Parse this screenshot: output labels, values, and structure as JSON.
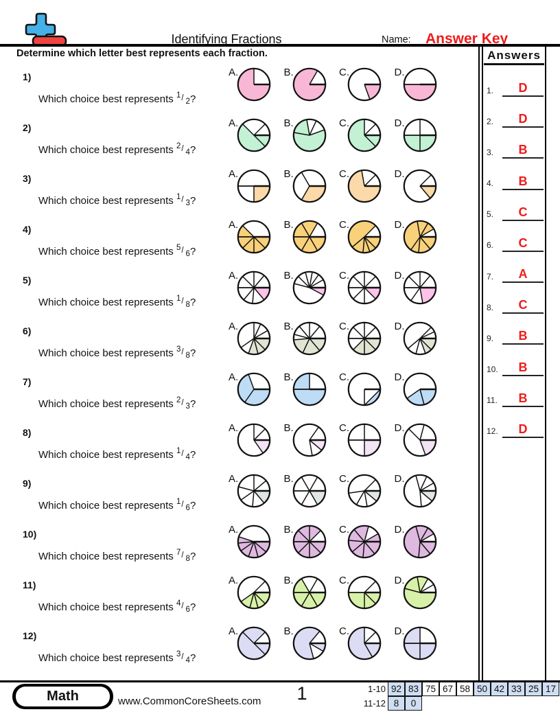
{
  "header": {
    "title": "Identifying Fractions",
    "name_label": "Name:",
    "answer_key": "Answer Key",
    "accent_red": "#ee1c1c"
  },
  "instruction": "Determine which letter best represents each fraction.",
  "answers_panel": {
    "title": "Answers",
    "items": [
      {
        "num": "1.",
        "letter": "D"
      },
      {
        "num": "2.",
        "letter": "D"
      },
      {
        "num": "3.",
        "letter": "B"
      },
      {
        "num": "4.",
        "letter": "B"
      },
      {
        "num": "5.",
        "letter": "C"
      },
      {
        "num": "6.",
        "letter": "C"
      },
      {
        "num": "7.",
        "letter": "A"
      },
      {
        "num": "8.",
        "letter": "C"
      },
      {
        "num": "9.",
        "letter": "B"
      },
      {
        "num": "10.",
        "letter": "B"
      },
      {
        "num": "11.",
        "letter": "B"
      },
      {
        "num": "12.",
        "letter": "D"
      }
    ]
  },
  "question_prefix": "Which choice best represents",
  "question_suffix": "?",
  "choice_labels": [
    "A.",
    "B.",
    "C.",
    "D."
  ],
  "chart_data": {
    "type": "pie-worksheet",
    "note": "each question shows 4 candidate pie charts; geometry below"
  },
  "questions": [
    {
      "num": "1)",
      "numerator": "1",
      "denominator": "2",
      "color": "#f9b7d6",
      "pies": [
        {
          "b": [
            0,
            90
          ],
          "f": [
            0,
            1
          ]
        },
        {
          "b": [
            30,
            90
          ],
          "f": [
            0,
            1
          ]
        },
        {
          "b": [
            90,
            160
          ],
          "f": [
            1,
            0
          ]
        },
        {
          "b": [
            90,
            270
          ],
          "f": [
            1,
            0
          ]
        }
      ]
    },
    {
      "num": "2)",
      "numerator": "2",
      "denominator": "4",
      "color": "#c3f1d3",
      "pies": [
        {
          "b": [
            45,
            90,
            135,
            315
          ],
          "f": [
            0,
            1,
            1,
            0
          ]
        },
        {
          "b": [
            25,
            70,
            280,
            350
          ],
          "f": [
            0,
            1,
            1,
            0
          ]
        },
        {
          "b": [
            0,
            45,
            90,
            135
          ],
          "f": [
            0,
            0,
            1,
            1
          ]
        },
        {
          "b": [
            0,
            90,
            180,
            270
          ],
          "f": [
            0,
            1,
            1,
            0
          ]
        }
      ]
    },
    {
      "num": "3)",
      "numerator": "1",
      "denominator": "3",
      "color": "#fbd9a8",
      "pies": [
        {
          "b": [
            90,
            180,
            270
          ],
          "f": [
            1,
            0,
            0
          ]
        },
        {
          "b": [
            90,
            210,
            330
          ],
          "f": [
            1,
            0,
            0
          ]
        },
        {
          "b": [
            45,
            90,
            350
          ],
          "f": [
            0,
            1,
            0
          ]
        },
        {
          "b": [
            45,
            90,
            140
          ],
          "f": [
            0,
            1,
            0
          ]
        }
      ]
    },
    {
      "num": "4)",
      "numerator": "5",
      "denominator": "6",
      "color": "#f9d17a",
      "pies": [
        {
          "b": [
            90,
            135,
            180,
            225,
            270,
            315
          ],
          "f": [
            1,
            1,
            1,
            1,
            1,
            0
          ]
        },
        {
          "b": [
            30,
            90,
            150,
            210,
            270,
            330
          ],
          "f": [
            0,
            1,
            1,
            1,
            1,
            1
          ]
        },
        {
          "b": [
            45,
            90,
            135,
            160,
            185,
            230
          ],
          "f": [
            0,
            1,
            1,
            1,
            1,
            1
          ]
        },
        {
          "b": [
            30,
            60,
            90,
            140,
            185,
            215,
            350
          ],
          "f": [
            1,
            0,
            1,
            1,
            1,
            1,
            1
          ]
        }
      ]
    },
    {
      "num": "5)",
      "numerator": "1",
      "denominator": "8",
      "color": "#fbc3e8",
      "pies": [
        {
          "b": [
            0,
            40,
            90,
            140,
            185,
            220,
            270,
            315
          ],
          "f": [
            0,
            0,
            1,
            0,
            0,
            0,
            0,
            0
          ]
        },
        {
          "b": [
            10,
            35,
            60,
            90,
            118,
            285,
            315,
            345
          ],
          "f": [
            0,
            0,
            0,
            1,
            0,
            0,
            0,
            0
          ]
        },
        {
          "b": [
            0,
            45,
            90,
            135,
            180,
            225,
            270,
            315
          ],
          "f": [
            0,
            0,
            1,
            0,
            0,
            0,
            0,
            0
          ]
        },
        {
          "b": [
            0,
            40,
            90,
            170,
            215,
            270,
            315
          ],
          "f": [
            0,
            0,
            1,
            0,
            0,
            0,
            0
          ]
        }
      ]
    },
    {
      "num": "6)",
      "numerator": "3",
      "denominator": "8",
      "color": "#e0e4d2",
      "pies": [
        {
          "b": [
            0,
            25,
            60,
            90,
            135,
            165,
            200,
            235
          ],
          "f": [
            0,
            0,
            0,
            1,
            1,
            1,
            0,
            0
          ]
        },
        {
          "b": [
            0,
            40,
            90,
            140,
            205,
            265,
            285,
            320
          ],
          "f": [
            0,
            0,
            1,
            1,
            1,
            0,
            0,
            0
          ]
        },
        {
          "b": [
            0,
            45,
            90,
            135,
            180,
            225,
            270,
            315
          ],
          "f": [
            0,
            0,
            1,
            1,
            1,
            0,
            0,
            0
          ]
        },
        {
          "b": [
            45,
            65,
            90,
            135,
            160,
            195,
            230
          ],
          "f": [
            0,
            0,
            1,
            1,
            0,
            0,
            0
          ]
        }
      ]
    },
    {
      "num": "7)",
      "numerator": "2",
      "denominator": "3",
      "color": "#bedcf6",
      "pies": [
        {
          "b": [
            90,
            215,
            340
          ],
          "f": [
            1,
            1,
            0
          ]
        },
        {
          "b": [
            0,
            90,
            270
          ],
          "f": [
            0,
            1,
            1
          ]
        },
        {
          "b": [
            90,
            180
          ],
          "f": [
            0,
            0
          ],
          "seg": [
            90,
            180
          ]
        },
        {
          "b": [
            90,
            165,
            235
          ],
          "f": [
            1,
            1,
            0
          ]
        }
      ]
    },
    {
      "num": "8)",
      "numerator": "1",
      "denominator": "4",
      "color": "#f3e3f4",
      "pies": [
        {
          "b": [
            0,
            45,
            90,
            145
          ],
          "f": [
            0,
            0,
            1,
            0
          ]
        },
        {
          "b": [
            35,
            90,
            130,
            170
          ],
          "f": [
            0,
            1,
            0,
            0
          ]
        },
        {
          "b": [
            0,
            90,
            180,
            270
          ],
          "f": [
            0,
            1,
            0,
            0
          ]
        },
        {
          "b": [
            15,
            90,
            160,
            315
          ],
          "f": [
            0,
            1,
            0,
            0
          ]
        }
      ]
    },
    {
      "num": "9)",
      "numerator": "1",
      "denominator": "6",
      "color": "#e0e6e3",
      "pies": [
        {
          "b": [
            0,
            50,
            90,
            140,
            185,
            235,
            285
          ],
          "f": [
            0,
            0,
            1,
            0,
            0,
            0,
            0
          ]
        },
        {
          "b": [
            30,
            90,
            150,
            210,
            270,
            330
          ],
          "f": [
            0,
            1,
            0,
            0,
            0,
            0
          ]
        },
        {
          "b": [
            45,
            90,
            130,
            170,
            210,
            262
          ],
          "f": [
            0,
            1,
            0,
            0,
            0,
            0
          ]
        },
        {
          "b": [
            25,
            60,
            90,
            130,
            175,
            345
          ],
          "f": [
            0,
            0,
            1,
            0,
            0,
            0
          ]
        }
      ]
    },
    {
      "num": "10)",
      "numerator": "7",
      "denominator": "8",
      "color": "#dfb9e0",
      "pies": [
        {
          "b": [
            90,
            130,
            165,
            200,
            235,
            265,
            288
          ],
          "f": [
            1,
            1,
            1,
            1,
            1,
            1,
            0
          ]
        },
        {
          "b": [
            0,
            45,
            90,
            135,
            180,
            225,
            270,
            315
          ],
          "f": [
            1,
            0,
            1,
            1,
            1,
            1,
            1,
            1
          ]
        },
        {
          "b": [
            15,
            60,
            90,
            140,
            185,
            230,
            275,
            320
          ],
          "f": [
            0,
            1,
            1,
            1,
            1,
            1,
            1,
            1
          ]
        },
        {
          "b": [
            30,
            60,
            90,
            140,
            185,
            345
          ],
          "f": [
            1,
            0,
            1,
            1,
            1,
            1
          ]
        }
      ]
    },
    {
      "num": "11)",
      "numerator": "4",
      "denominator": "6",
      "color": "#d8f1a8",
      "pies": [
        {
          "b": [
            45,
            90,
            135,
            165,
            195,
            235
          ],
          "f": [
            0,
            1,
            1,
            1,
            1,
            0
          ]
        },
        {
          "b": [
            30,
            90,
            150,
            210,
            270,
            330
          ],
          "f": [
            0,
            1,
            1,
            1,
            1,
            0
          ]
        },
        {
          "b": [
            45,
            90,
            135,
            180,
            270
          ],
          "f": [
            0,
            1,
            1,
            1,
            0
          ]
        },
        {
          "b": [
            30,
            60,
            90,
            285,
            350
          ],
          "f": [
            0,
            0,
            1,
            1,
            1
          ]
        }
      ]
    },
    {
      "num": "12)",
      "numerator": "3",
      "denominator": "4",
      "color": "#dcdcf4",
      "pies": [
        {
          "b": [
            45,
            90,
            135,
            315
          ],
          "f": [
            0,
            1,
            1,
            1
          ]
        },
        {
          "b": [
            40,
            90,
            120,
            165
          ],
          "f": [
            0,
            1,
            0,
            1
          ]
        },
        {
          "b": [
            0,
            45,
            90,
            150
          ],
          "f": [
            0,
            0,
            1,
            1
          ]
        },
        {
          "b": [
            0,
            90,
            180,
            270
          ],
          "f": [
            0,
            1,
            1,
            1
          ]
        }
      ]
    }
  ],
  "footer": {
    "badge": "Math",
    "site": "www.CommonCoreSheets.com",
    "page": "1",
    "highlight_blue": "#cfdef2",
    "score_rows": [
      {
        "label": "1-10",
        "cells": [
          {
            "v": "92",
            "hl": true
          },
          {
            "v": "83",
            "hl": true
          },
          {
            "v": "75",
            "hl": false
          },
          {
            "v": "67",
            "hl": false
          },
          {
            "v": "58",
            "hl": false
          },
          {
            "v": "50",
            "hl": true
          },
          {
            "v": "42",
            "hl": true
          },
          {
            "v": "33",
            "hl": true
          },
          {
            "v": "25",
            "hl": true
          },
          {
            "v": "17",
            "hl": true
          }
        ]
      },
      {
        "label": "11-12",
        "cells": [
          {
            "v": "8",
            "hl": true
          },
          {
            "v": "0",
            "hl": true
          }
        ]
      }
    ]
  }
}
